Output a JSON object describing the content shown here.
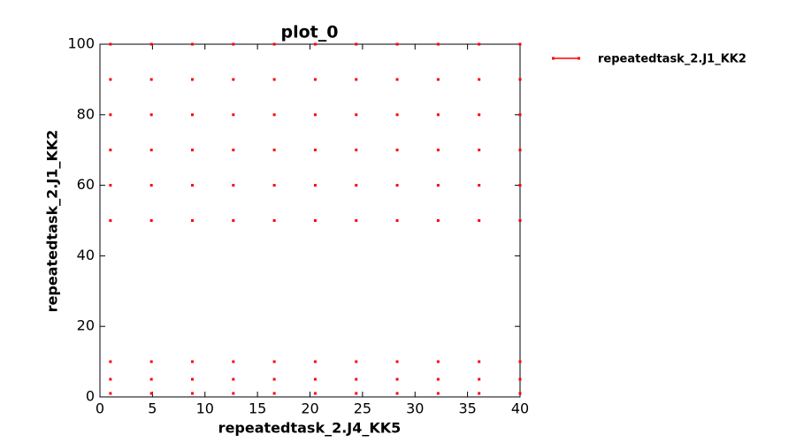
{
  "chart_data": {
    "type": "scatter",
    "title": "plot_0",
    "xlabel": "repeatedtask_2.J4_KK5",
    "ylabel": "repeatedtask_2.J1_KK2",
    "xlim": [
      0,
      40
    ],
    "ylim": [
      0,
      100
    ],
    "xticks": [
      0,
      5,
      10,
      15,
      20,
      25,
      30,
      35,
      40
    ],
    "yticks": [
      0,
      20,
      40,
      60,
      80,
      100
    ],
    "grid": false,
    "legend": "outside-right",
    "series": [
      {
        "name": "repeatedtask_2.J1_KK2",
        "color": "#ff0000",
        "x": [
          1,
          1,
          1,
          1,
          1,
          1,
          1,
          1,
          1,
          4.9,
          4.9,
          4.9,
          4.9,
          4.9,
          4.9,
          4.9,
          4.9,
          4.9,
          8.8,
          8.8,
          8.8,
          8.8,
          8.8,
          8.8,
          8.8,
          8.8,
          8.8,
          12.7,
          12.7,
          12.7,
          12.7,
          12.7,
          12.7,
          12.7,
          12.7,
          12.7,
          16.6,
          16.6,
          16.6,
          16.6,
          16.6,
          16.6,
          16.6,
          16.6,
          16.6,
          20.5,
          20.5,
          20.5,
          20.5,
          20.5,
          20.5,
          20.5,
          20.5,
          20.5,
          24.4,
          24.4,
          24.4,
          24.4,
          24.4,
          24.4,
          24.4,
          24.4,
          24.4,
          28.3,
          28.3,
          28.3,
          28.3,
          28.3,
          28.3,
          28.3,
          28.3,
          28.3,
          32.2,
          32.2,
          32.2,
          32.2,
          32.2,
          32.2,
          32.2,
          32.2,
          32.2,
          36.1,
          36.1,
          36.1,
          36.1,
          36.1,
          36.1,
          36.1,
          36.1,
          36.1,
          40,
          40,
          40,
          40,
          40,
          40,
          40,
          40,
          40
        ],
        "values": [
          1,
          5,
          10,
          50,
          60,
          70,
          80,
          90,
          100,
          1,
          5,
          10,
          50,
          60,
          70,
          80,
          90,
          100,
          1,
          5,
          10,
          50,
          60,
          70,
          80,
          90,
          100,
          1,
          5,
          10,
          50,
          60,
          70,
          80,
          90,
          100,
          1,
          5,
          10,
          50,
          60,
          70,
          80,
          90,
          100,
          1,
          5,
          10,
          50,
          60,
          70,
          80,
          90,
          100,
          1,
          5,
          10,
          50,
          60,
          70,
          80,
          90,
          100,
          1,
          5,
          10,
          50,
          60,
          70,
          80,
          90,
          100,
          1,
          5,
          10,
          50,
          60,
          70,
          80,
          90,
          100,
          1,
          5,
          10,
          50,
          60,
          70,
          80,
          90,
          100,
          1,
          5,
          10,
          50,
          60,
          70,
          80,
          90,
          100
        ]
      }
    ]
  }
}
